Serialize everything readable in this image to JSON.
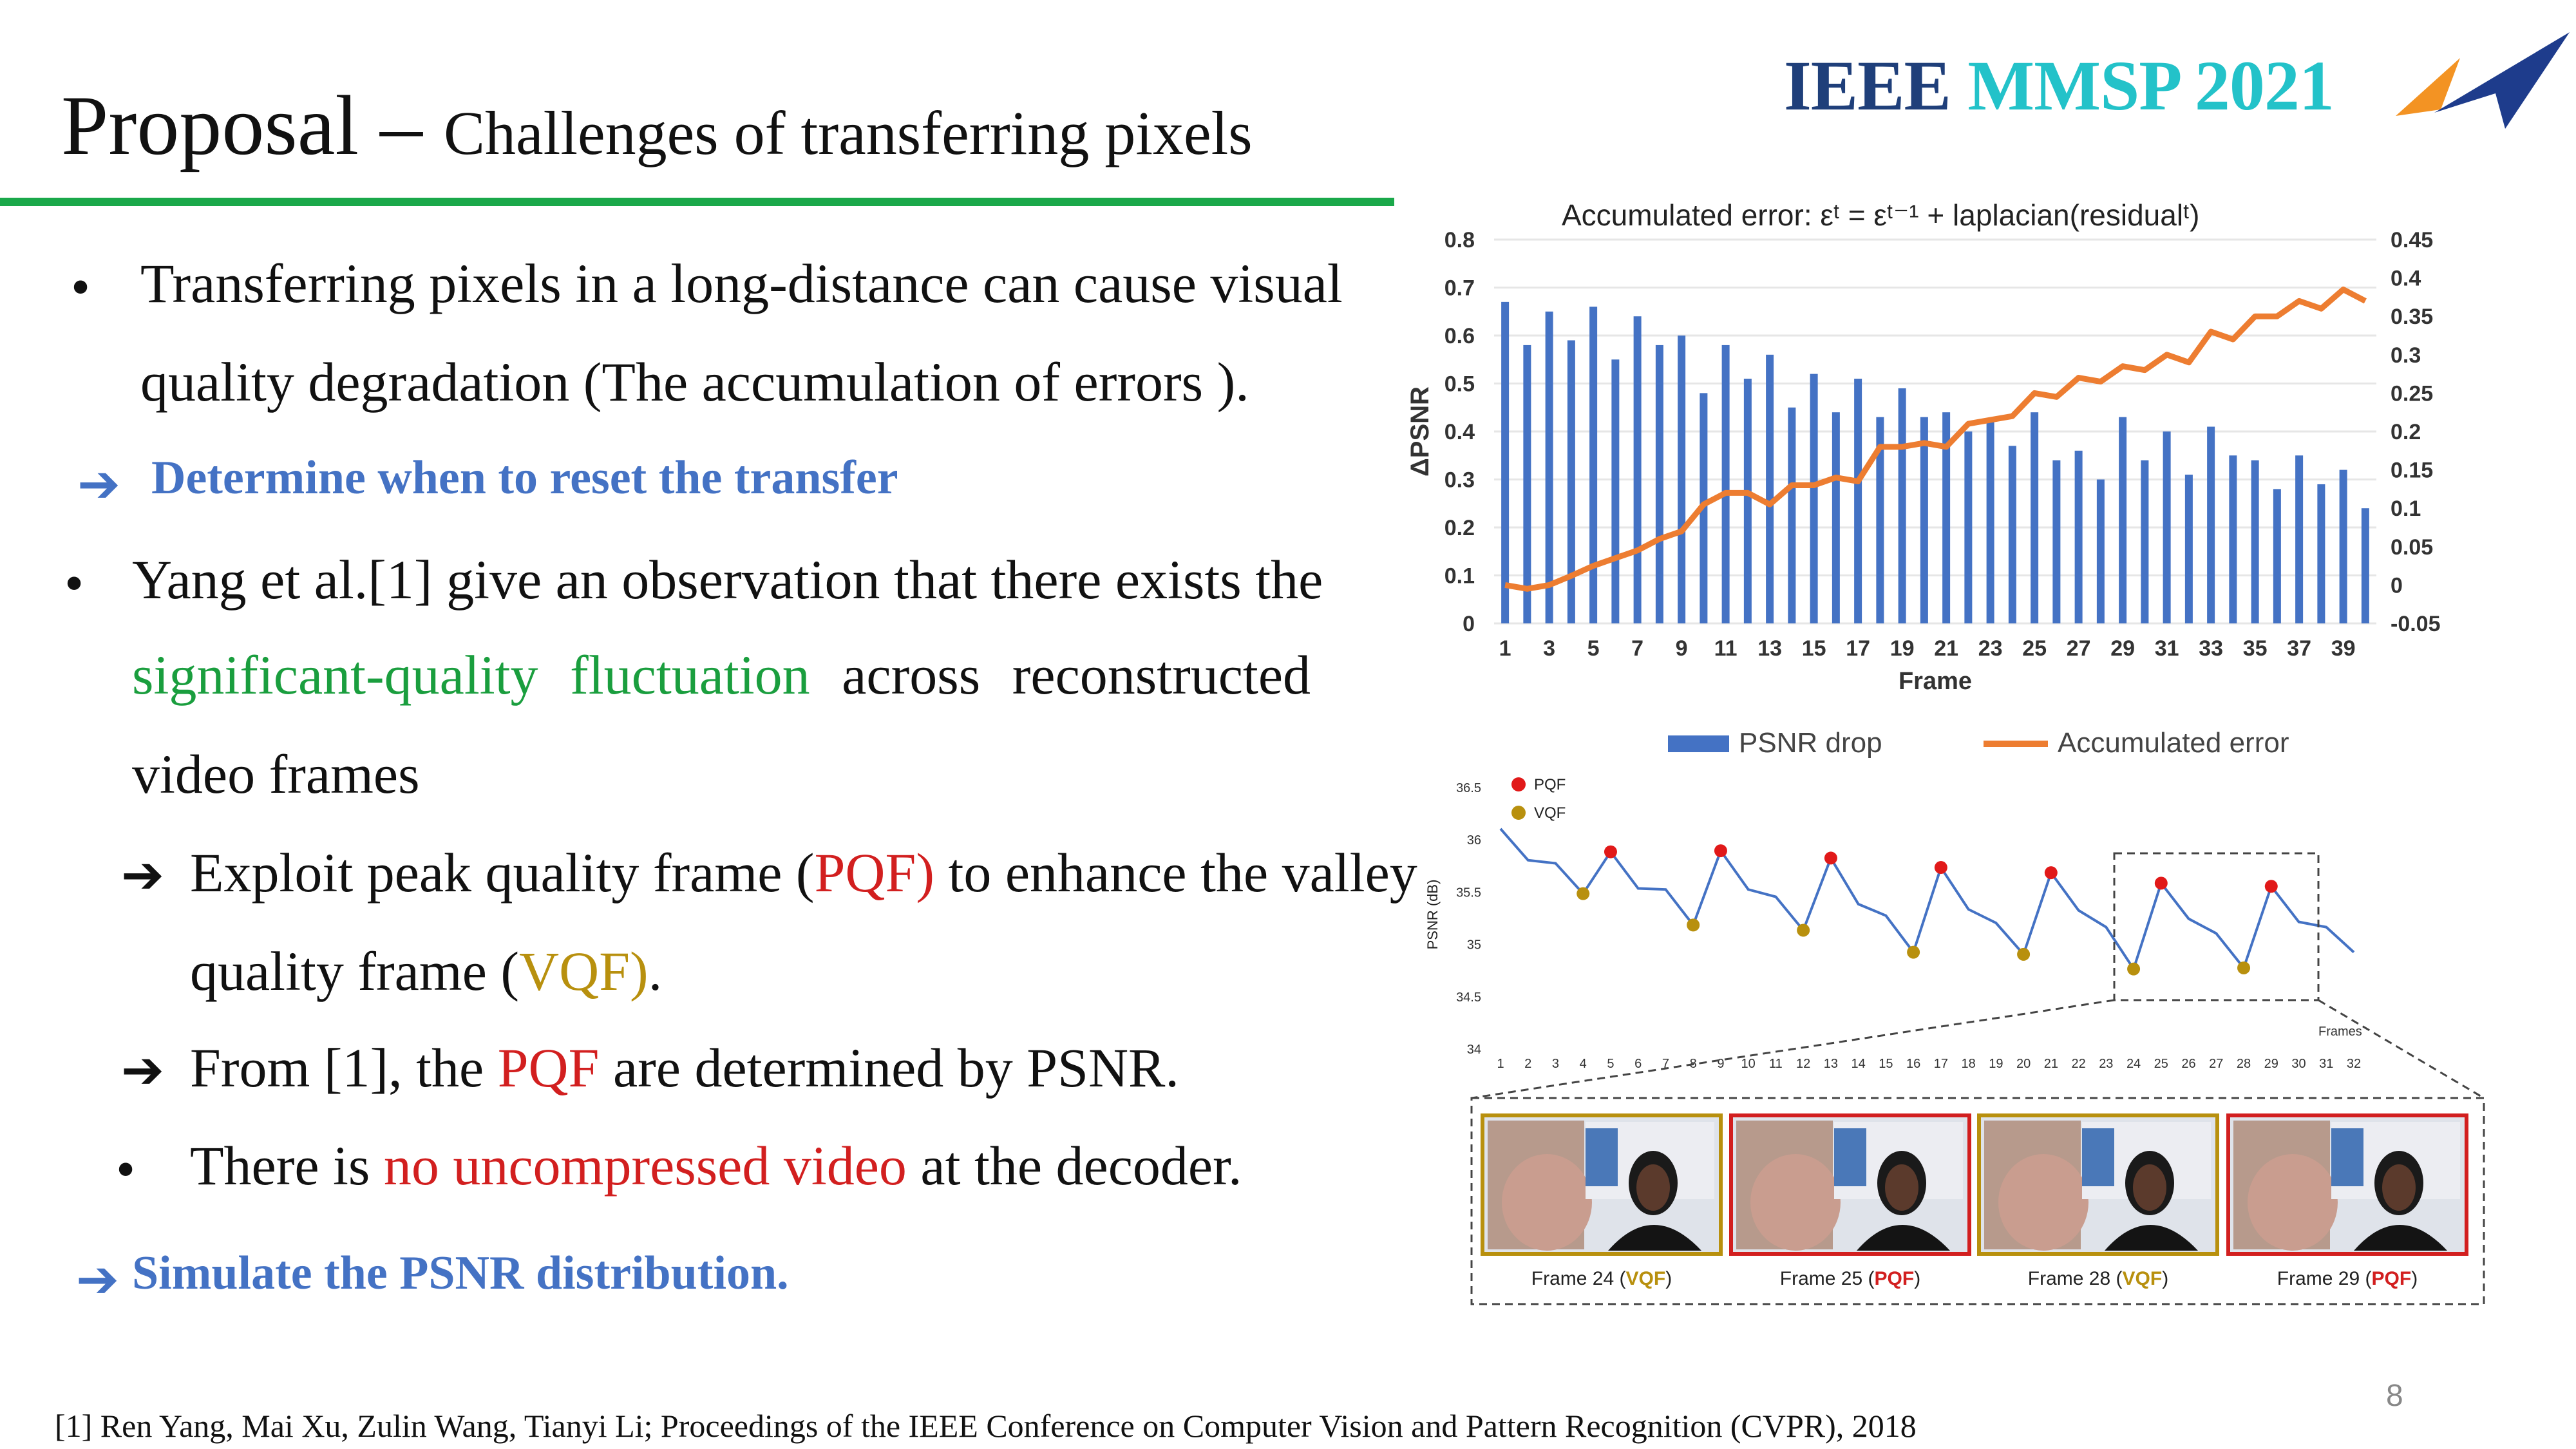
{
  "header": {
    "title_main": "Proposal",
    "title_dash": " – ",
    "title_sub": "Challenges of transferring pixels",
    "brand_part1": "IEEE ",
    "brand_part2": "MMSP 2021"
  },
  "body": {
    "b1_line1": "Transferring pixels in a long-distance can cause visual",
    "b1_line2": "quality degradation (The accumulation of errors ).",
    "a1": "Determine when to reset the transfer",
    "b2_line1": "Yang et al.[1] give an observation that there exists the",
    "b2_w1": "significant-quality",
    "b2_w2": "fluctuation",
    "b2_w3": "across",
    "b2_w4": "reconstructed",
    "b2_line3": "video frames",
    "s1_pre": "Exploit peak quality frame (",
    "s1_pqf": "PQF)",
    "s1_mid": " to enhance the valley",
    "s1_l2pre": "quality frame (",
    "s1_vqf": "VQF)",
    "s1_end": ".",
    "s2_pre": "From [1], the ",
    "s2_pqf": "PQF",
    "s2_post": " are determined by PSNR.",
    "s3_pre": "There is ",
    "s3_red": "no uncompressed video",
    "s3_post": " at the decoder.",
    "a2": "Simulate the PSNR distribution."
  },
  "footer": {
    "reference": "[1] Ren Yang, Mai Xu, Zulin Wang, Tianyi Li; Proceedings of the IEEE Conference on Computer Vision and Pattern Recognition (CVPR), 2018",
    "page_number": "8"
  },
  "chart_data": [
    {
      "type": "bar",
      "title": "Accumulated error: εᵗ = εᵗ⁻¹ + laplacian(residualᵗ)",
      "xlabel": "Frame",
      "ylabel": "ΔPSNR",
      "ylim": [
        0,
        0.8
      ],
      "y2lim": [
        -0.05,
        0.45
      ],
      "x_tick_labels": [
        "1",
        "3",
        "5",
        "7",
        "9",
        "11",
        "13",
        "15",
        "17",
        "19",
        "21",
        "23",
        "25",
        "27",
        "29",
        "31",
        "33",
        "35",
        "37",
        "39"
      ],
      "y_tick_labels": [
        "0",
        "0.1",
        "0.2",
        "0.3",
        "0.4",
        "0.5",
        "0.6",
        "0.7",
        "0.8"
      ],
      "y2_tick_labels": [
        "-0.05",
        "0",
        "0.05",
        "0.1",
        "0.15",
        "0.2",
        "0.25",
        "0.3",
        "0.35",
        "0.4",
        "0.45"
      ],
      "x": [
        1,
        2,
        3,
        4,
        5,
        6,
        7,
        8,
        9,
        10,
        11,
        12,
        13,
        14,
        15,
        16,
        17,
        18,
        19,
        20,
        21,
        22,
        23,
        24,
        25,
        26,
        27,
        28,
        29,
        30,
        31,
        32,
        33,
        34,
        35,
        36,
        37,
        38,
        39,
        40
      ],
      "series": [
        {
          "name": "PSNR drop",
          "color": "#4472c4",
          "axis": "left",
          "values": [
            0.67,
            0.58,
            0.65,
            0.59,
            0.66,
            0.55,
            0.64,
            0.58,
            0.6,
            0.48,
            0.58,
            0.51,
            0.56,
            0.45,
            0.52,
            0.44,
            0.51,
            0.43,
            0.49,
            0.43,
            0.44,
            0.4,
            0.42,
            0.37,
            0.44,
            0.34,
            0.36,
            0.3,
            0.43,
            0.34,
            0.4,
            0.31,
            0.41,
            0.35,
            0.34,
            0.28,
            0.35,
            0.29,
            0.32,
            0.24
          ]
        },
        {
          "name": "Accumulated error",
          "color": "#ed7d31",
          "axis": "right",
          "values": [
            0.0,
            -0.005,
            0.0,
            0.012,
            0.025,
            0.035,
            0.045,
            0.06,
            0.07,
            0.105,
            0.12,
            0.12,
            0.105,
            0.13,
            0.13,
            0.14,
            0.135,
            0.18,
            0.18,
            0.185,
            0.18,
            0.21,
            0.215,
            0.22,
            0.25,
            0.245,
            0.27,
            0.265,
            0.285,
            0.28,
            0.3,
            0.29,
            0.33,
            0.32,
            0.35,
            0.35,
            0.37,
            0.36,
            0.385,
            0.37
          ]
        }
      ],
      "legend_position": "bottom",
      "grid": true
    },
    {
      "type": "line",
      "ylabel": "PSNR (dB)",
      "xlabel": "Frames",
      "ylim": [
        34,
        36.5
      ],
      "y_tick_labels": [
        "34",
        "34.5",
        "35",
        "35.5",
        "36",
        "36.5"
      ],
      "x": [
        1,
        2,
        3,
        4,
        5,
        6,
        7,
        8,
        9,
        10,
        11,
        12,
        13,
        14,
        15,
        16,
        17,
        18,
        19,
        20,
        21,
        22,
        23,
        24,
        25,
        26,
        27,
        28,
        29,
        30,
        31,
        32
      ],
      "series": [
        {
          "name": "PSNR",
          "color": "#4472c4",
          "values": [
            36.1,
            35.8,
            35.77,
            35.48,
            35.88,
            35.53,
            35.52,
            35.18,
            35.89,
            35.52,
            35.45,
            35.13,
            35.82,
            35.38,
            35.27,
            34.92,
            35.73,
            35.33,
            35.2,
            34.9,
            35.68,
            35.32,
            35.16,
            34.76,
            35.58,
            35.24,
            35.1,
            34.77,
            35.55,
            35.21,
            35.16,
            34.92
          ]
        },
        {
          "name": "PQF",
          "color": "#e11919",
          "points": [
            [
              5,
              35.88
            ],
            [
              9,
              35.89
            ],
            [
              13,
              35.82
            ],
            [
              17,
              35.73
            ],
            [
              21,
              35.68
            ],
            [
              25,
              35.58
            ],
            [
              29,
              35.55
            ]
          ]
        },
        {
          "name": "VQF",
          "color": "#b8900e",
          "points": [
            [
              4,
              35.48
            ],
            [
              8,
              35.18
            ],
            [
              12,
              35.13
            ],
            [
              16,
              34.92
            ],
            [
              20,
              34.9
            ],
            [
              24,
              34.76
            ],
            [
              28,
              34.77
            ]
          ]
        }
      ],
      "legend_position": "top-left"
    }
  ],
  "frames_panel": {
    "frames": [
      {
        "prefix": "Frame 24 (",
        "tag": "VQF",
        "suffix": ")",
        "kind": "vqf"
      },
      {
        "prefix": "Frame 25 (",
        "tag": "PQF",
        "suffix": ")",
        "kind": "pqf"
      },
      {
        "prefix": "Frame 28 (",
        "tag": "VQF",
        "suffix": ")",
        "kind": "vqf"
      },
      {
        "prefix": "Frame 29 (",
        "tag": "PQF",
        "suffix": ")",
        "kind": "pqf"
      }
    ],
    "colors": {
      "vqf": "#b8900e",
      "pqf": "#d21f1f"
    }
  }
}
